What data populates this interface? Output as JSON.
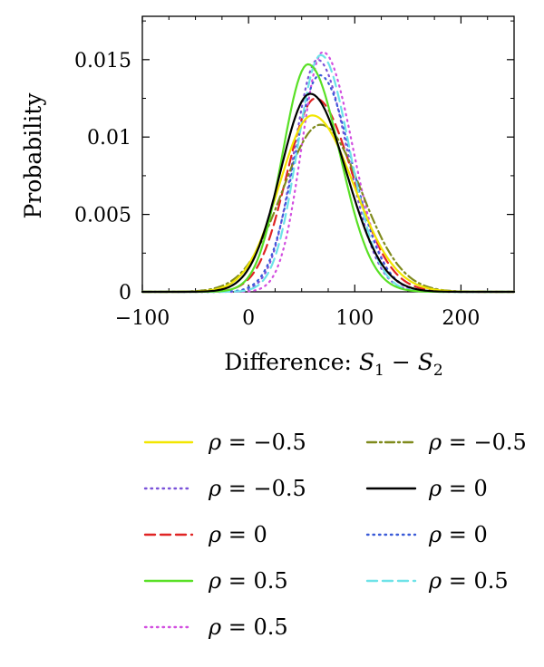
{
  "chart_data": {
    "type": "line",
    "title": "",
    "xlabel": "Difference: S1 − S2",
    "xlabel_parts": {
      "prefix": "Difference: ",
      "s": "S",
      "sub1": "1",
      "minus": " − ",
      "sub2": "2"
    },
    "ylabel": "Probability",
    "xlim": [
      -100,
      250
    ],
    "ylim": [
      0,
      0.0178
    ],
    "xticks": [
      -100,
      0,
      100,
      200
    ],
    "xtick_labels": [
      "−100",
      "0",
      "100",
      "200"
    ],
    "yticks": [
      0,
      0.005,
      0.01,
      0.015
    ],
    "ytick_labels": [
      "0",
      "0.005",
      "0.01",
      "0.015"
    ],
    "grid": false,
    "legend_position": "bottom",
    "series": [
      {
        "label": "ρ = −0.5",
        "color": "#f2e600",
        "dash": "solid",
        "peak_x": 60,
        "peak_y": 0.0114,
        "sigma_left": 31,
        "sigma_right": 39
      },
      {
        "label": "ρ = −0.5",
        "color": "#7a52d9",
        "dash": "dotted",
        "peak_x": 65,
        "peak_y": 0.015,
        "sigma_left": 22,
        "sigma_right": 28
      },
      {
        "label": "ρ = 0",
        "color": "#e02424",
        "dash": "dashed",
        "peak_x": 63,
        "peak_y": 0.0125,
        "sigma_left": 27,
        "sigma_right": 35
      },
      {
        "label": "ρ = 0.5",
        "color": "#59e026",
        "dash": "solid",
        "peak_x": 56,
        "peak_y": 0.0147,
        "sigma_left": 24,
        "sigma_right": 30
      },
      {
        "label": "ρ = 0.5",
        "color": "#d24fe0",
        "dash": "dotted",
        "peak_x": 70,
        "peak_y": 0.0155,
        "sigma_left": 20,
        "sigma_right": 28
      },
      {
        "label": "ρ = −0.5",
        "color": "#7f8a1c",
        "dash": "dashdot",
        "peak_x": 68,
        "peak_y": 0.0108,
        "sigma_left": 36,
        "sigma_right": 38
      },
      {
        "label": "ρ = 0",
        "color": "#000000",
        "dash": "solid",
        "peak_x": 58,
        "peak_y": 0.0128,
        "sigma_left": 28,
        "sigma_right": 34
      },
      {
        "label": "ρ = 0",
        "color": "#3a5bd8",
        "dash": "dotted",
        "peak_x": 67,
        "peak_y": 0.014,
        "sigma_left": 24,
        "sigma_right": 30
      },
      {
        "label": "ρ = 0.5",
        "color": "#6ee3e8",
        "dash": "dashed",
        "peak_x": 68,
        "peak_y": 0.0153,
        "sigma_left": 22,
        "sigma_right": 27
      }
    ],
    "legend_columns": [
      [
        0,
        1,
        2,
        3,
        4
      ],
      [
        5,
        6,
        7,
        8
      ]
    ]
  }
}
